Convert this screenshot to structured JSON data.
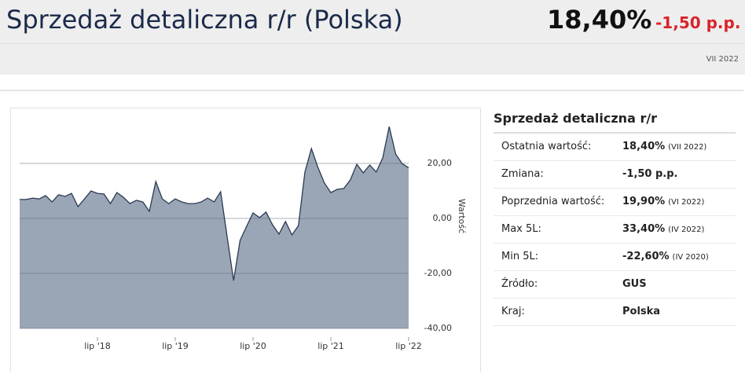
{
  "header": {
    "title": "Sprzedaż detaliczna r/r (Polska)",
    "value": "18,40%",
    "change": "-1,50 p.p.",
    "date": "VII 2022"
  },
  "chart_data": {
    "type": "area",
    "y_label": "Wartość",
    "x": [
      "2017-07",
      "2017-08",
      "2017-09",
      "2017-10",
      "2017-11",
      "2017-12",
      "2018-01",
      "2018-02",
      "2018-03",
      "2018-04",
      "2018-05",
      "2018-06",
      "2018-07",
      "2018-08",
      "2018-09",
      "2018-10",
      "2018-11",
      "2018-12",
      "2019-01",
      "2019-02",
      "2019-03",
      "2019-04",
      "2019-05",
      "2019-06",
      "2019-07",
      "2019-08",
      "2019-09",
      "2019-10",
      "2019-11",
      "2019-12",
      "2020-01",
      "2020-02",
      "2020-03",
      "2020-04",
      "2020-05",
      "2020-06",
      "2020-07",
      "2020-08",
      "2020-09",
      "2020-10",
      "2020-11",
      "2020-12",
      "2021-01",
      "2021-02",
      "2021-03",
      "2021-04",
      "2021-05",
      "2021-06",
      "2021-07",
      "2021-08",
      "2021-09",
      "2021-10",
      "2021-11",
      "2021-12",
      "2022-01",
      "2022-02",
      "2022-03",
      "2022-04",
      "2022-05",
      "2022-06",
      "2022-07"
    ],
    "values": [
      6.9,
      6.9,
      7.4,
      7.1,
      8.3,
      6.0,
      8.6,
      8.0,
      9.1,
      4.3,
      7.1,
      10.0,
      9.1,
      8.9,
      5.4,
      9.4,
      7.7,
      5.4,
      6.6,
      6.0,
      2.6,
      13.4,
      7.1,
      5.4,
      7.1,
      6.0,
      5.4,
      5.4,
      6.0,
      7.4,
      6.0,
      9.7,
      -6.6,
      -22.6,
      -8.0,
      -2.9,
      2.0,
      0.3,
      2.3,
      -2.3,
      -5.7,
      -1.1,
      -6.0,
      -2.6,
      16.9,
      25.4,
      18.6,
      12.9,
      9.4,
      10.6,
      10.9,
      14.0,
      19.7,
      16.6,
      19.4,
      16.9,
      22.0,
      33.4,
      23.4,
      19.9,
      18.4
    ],
    "color": "#9aa6b6",
    "line_color": "#2b3a52",
    "ylim": [
      -40,
      40
    ],
    "yticks": [
      {
        "value": -40,
        "label": "-40,00"
      },
      {
        "value": -20,
        "label": "-20,00"
      },
      {
        "value": 0,
        "label": "0,00"
      },
      {
        "value": 20,
        "label": "20,00"
      }
    ],
    "xticks": [
      {
        "value": "2018-07",
        "label": "lip '18"
      },
      {
        "value": "2019-07",
        "label": "lip '19"
      },
      {
        "value": "2020-07",
        "label": "lip '20"
      },
      {
        "value": "2021-07",
        "label": "lip '21"
      },
      {
        "value": "2022-07",
        "label": "lip '22"
      }
    ],
    "grid": true
  },
  "table": {
    "title": "Sprzedaż detaliczna r/r",
    "rows": [
      {
        "label": "Ostatnia wartość:",
        "value": "18,40%",
        "note": "(VII 2022)"
      },
      {
        "label": "Zmiana:",
        "value": "-1,50 p.p."
      },
      {
        "label": "Poprzednia wartość:",
        "value": "19,90%",
        "note": "(VI 2022)"
      },
      {
        "label": "Max 5L:",
        "value": "33,40%",
        "note": "(IV 2022)"
      },
      {
        "label": "Min 5L:",
        "value": "-22,60%",
        "note": "(IV 2020)"
      },
      {
        "label": "Źródło:",
        "value": "GUS"
      },
      {
        "label": "Kraj:",
        "value": "Polska"
      }
    ]
  }
}
